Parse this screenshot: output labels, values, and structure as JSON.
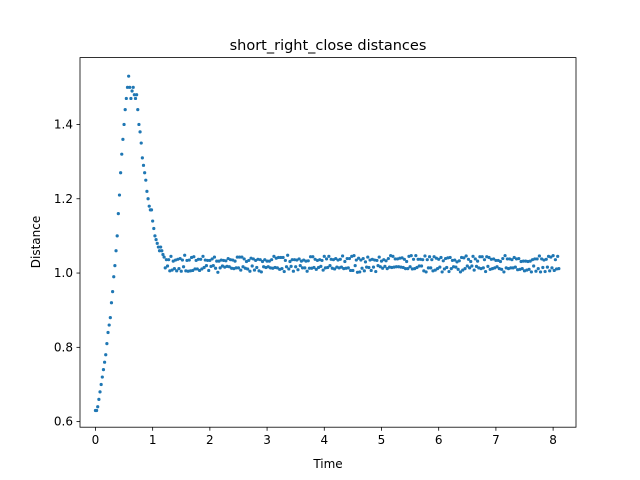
{
  "chart_data": {
    "type": "scatter",
    "title": "short_right_close distances",
    "xlabel": "Time",
    "ylabel": "Distance",
    "xlim": [
      -0.27,
      8.4
    ],
    "ylim": [
      0.585,
      1.58
    ],
    "xticks": [
      0,
      1,
      2,
      3,
      4,
      5,
      6,
      7,
      8
    ],
    "yticks": [
      0.6,
      0.8,
      1.0,
      1.2,
      1.4
    ],
    "ytick_labels": [
      "0.6",
      "0.8",
      "1.0",
      "1.2",
      "1.4"
    ],
    "grid": false,
    "color": "#1f77b4",
    "series": [
      {
        "x_start": 0.0,
        "x_step": 0.02,
        "ramp_up": [
          [
            0.0,
            0.63
          ],
          [
            0.02,
            0.63
          ],
          [
            0.04,
            0.64
          ],
          [
            0.06,
            0.66
          ],
          [
            0.08,
            0.68
          ],
          [
            0.1,
            0.7
          ],
          [
            0.12,
            0.72
          ],
          [
            0.14,
            0.74
          ],
          [
            0.16,
            0.76
          ],
          [
            0.18,
            0.78
          ],
          [
            0.2,
            0.81
          ],
          [
            0.22,
            0.84
          ],
          [
            0.24,
            0.86
          ],
          [
            0.26,
            0.88
          ],
          [
            0.28,
            0.92
          ],
          [
            0.3,
            0.95
          ],
          [
            0.32,
            0.99
          ],
          [
            0.34,
            1.02
          ],
          [
            0.36,
            1.06
          ],
          [
            0.38,
            1.1
          ],
          [
            0.4,
            1.16
          ],
          [
            0.42,
            1.21
          ],
          [
            0.44,
            1.27
          ],
          [
            0.46,
            1.32
          ],
          [
            0.48,
            1.36
          ],
          [
            0.5,
            1.4
          ],
          [
            0.52,
            1.44
          ],
          [
            0.54,
            1.47
          ],
          [
            0.56,
            1.5
          ],
          [
            0.58,
            1.53
          ],
          [
            0.6,
            1.5
          ],
          [
            0.62,
            1.47
          ],
          [
            0.64,
            1.49
          ],
          [
            0.66,
            1.5
          ],
          [
            0.68,
            1.48
          ],
          [
            0.7,
            1.47
          ],
          [
            0.72,
            1.48
          ],
          [
            0.74,
            1.44
          ],
          [
            0.76,
            1.4
          ],
          [
            0.78,
            1.38
          ],
          [
            0.8,
            1.35
          ],
          [
            0.82,
            1.31
          ],
          [
            0.84,
            1.29
          ],
          [
            0.86,
            1.27
          ],
          [
            0.88,
            1.25
          ],
          [
            0.9,
            1.22
          ],
          [
            0.92,
            1.2
          ],
          [
            0.94,
            1.18
          ],
          [
            0.96,
            1.17
          ],
          [
            0.98,
            1.17
          ],
          [
            1.0,
            1.14
          ],
          [
            1.02,
            1.12
          ],
          [
            1.04,
            1.1
          ],
          [
            1.06,
            1.09
          ],
          [
            1.08,
            1.08
          ],
          [
            1.1,
            1.07
          ],
          [
            1.12,
            1.06
          ],
          [
            1.14,
            1.07
          ],
          [
            1.16,
            1.06
          ],
          [
            1.18,
            1.05
          ]
        ],
        "steady_mean": 1.025,
        "steady_spread": 0.023,
        "x_end": 8.1
      }
    ]
  }
}
